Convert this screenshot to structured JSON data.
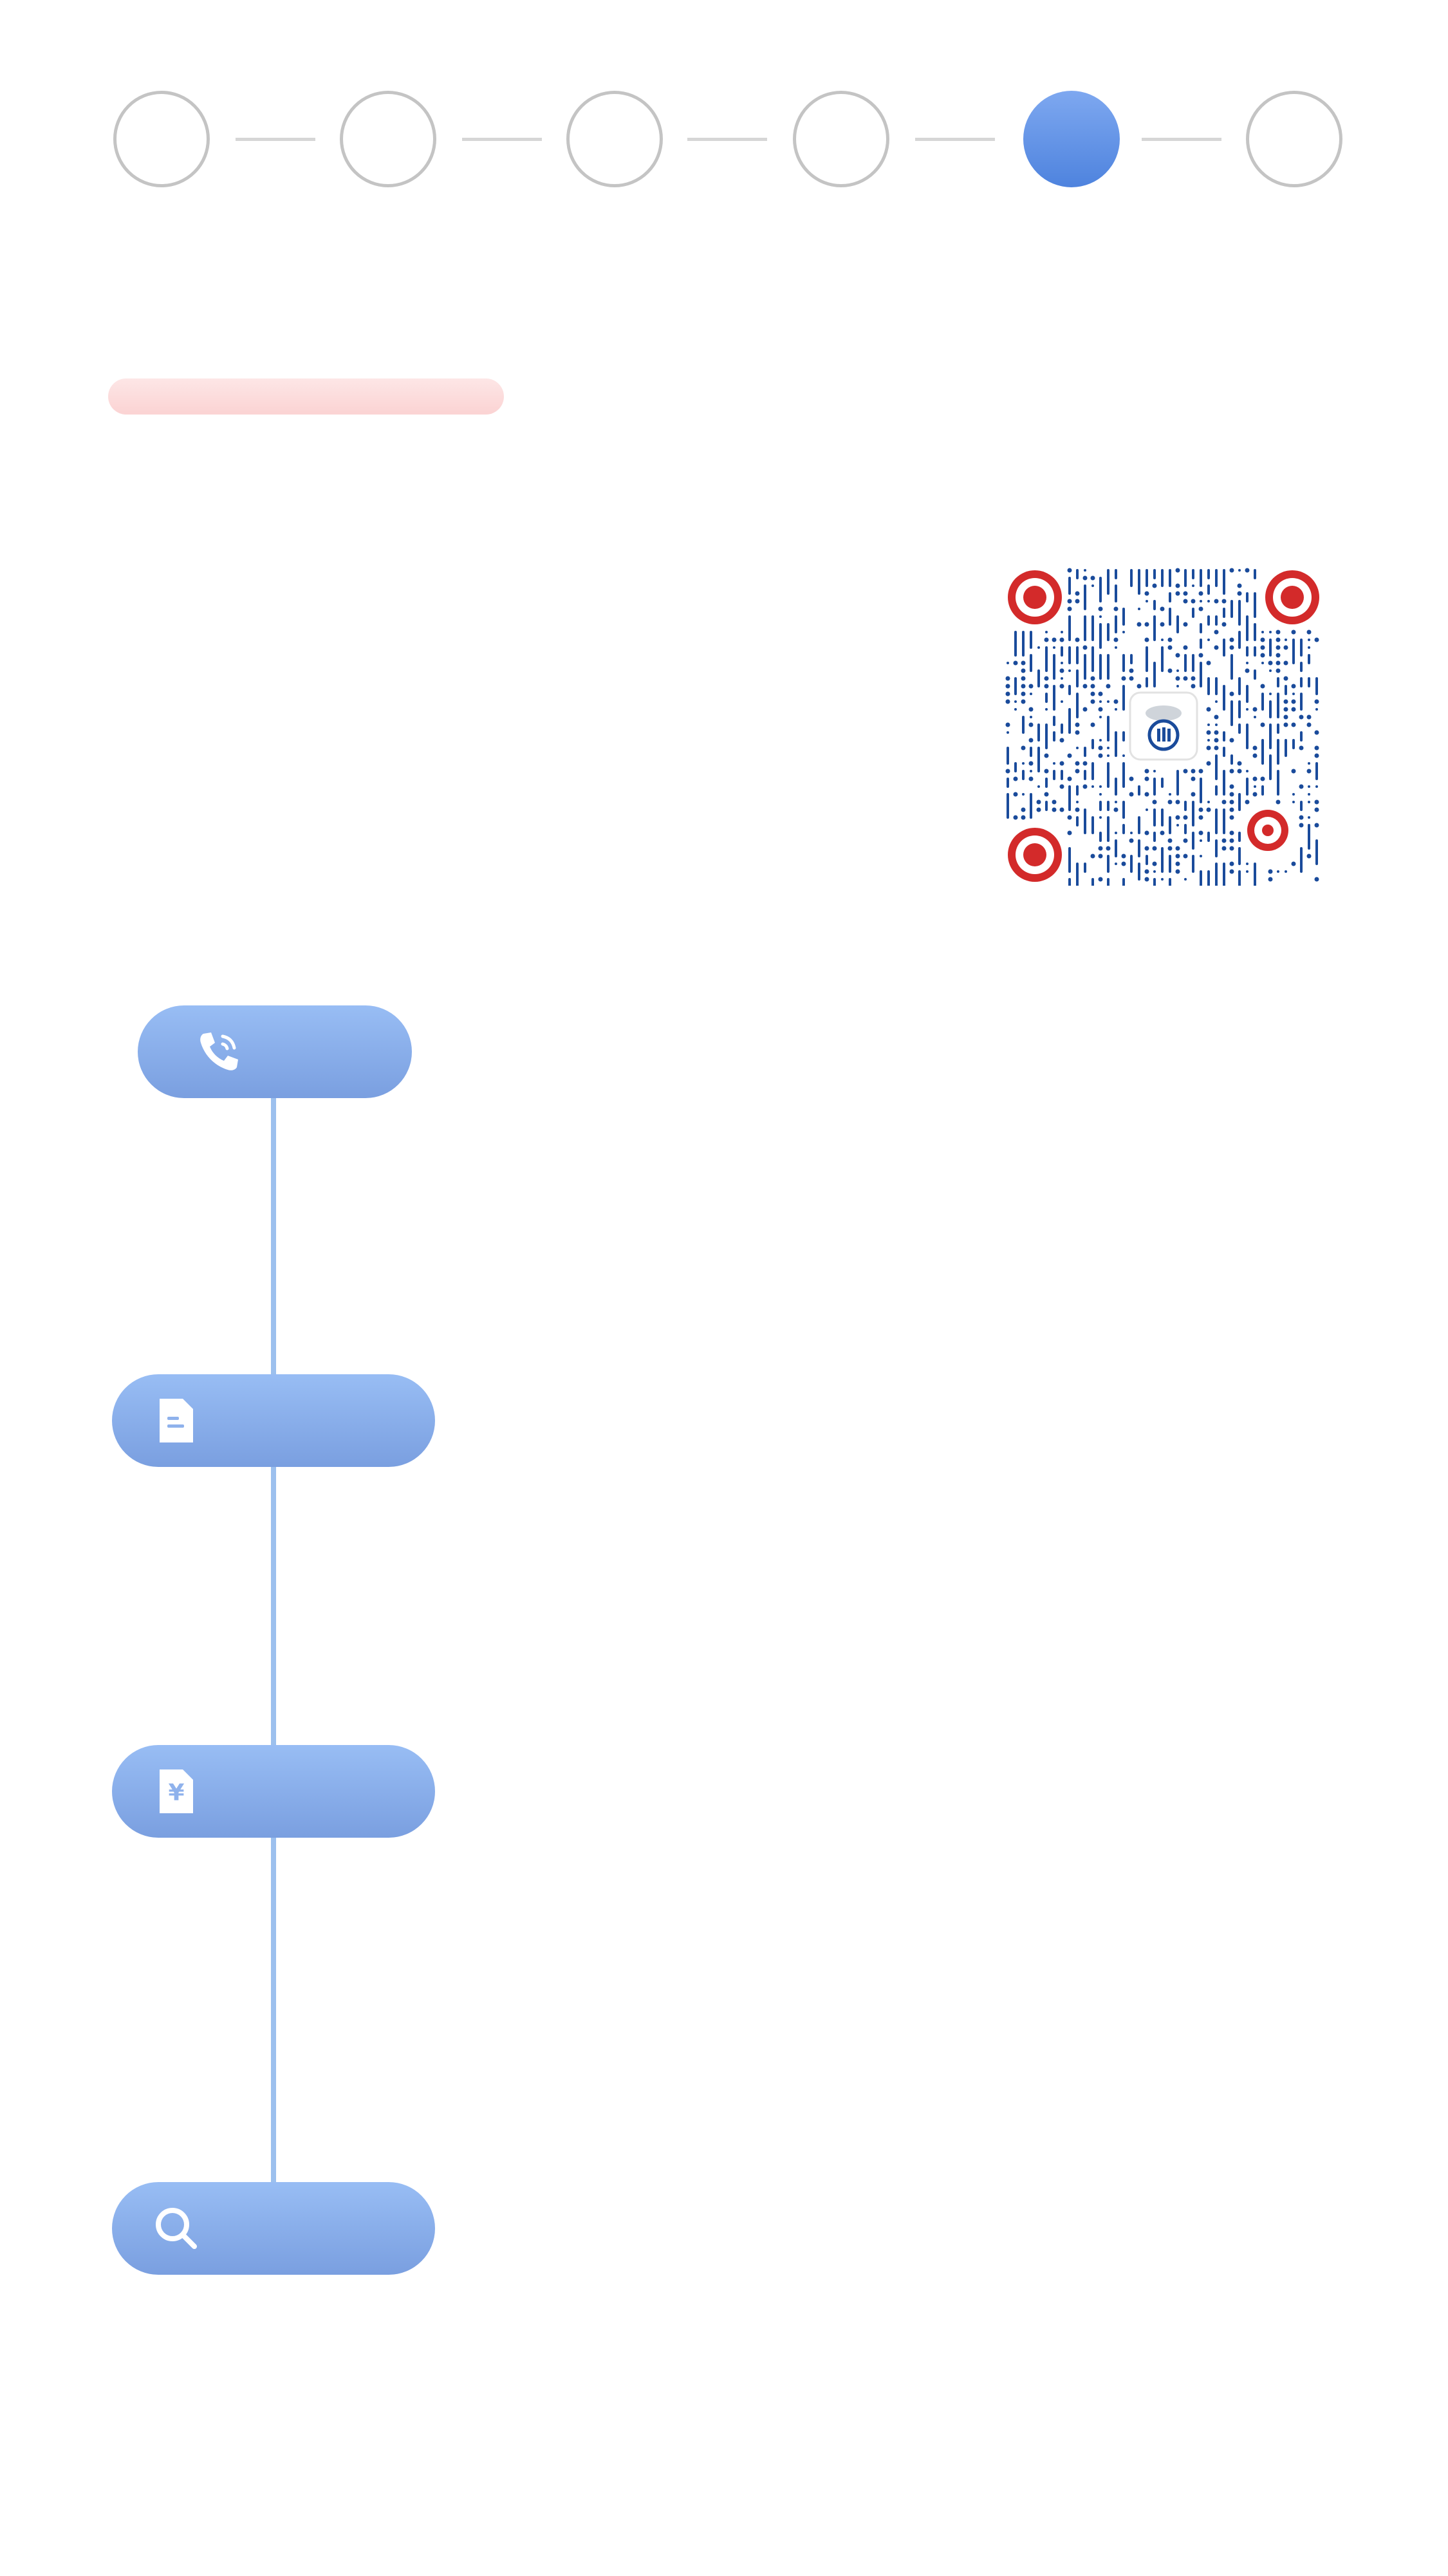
{
  "stepper": {
    "active_index": 4,
    "steps": [
      {
        "state": "inactive"
      },
      {
        "state": "inactive"
      },
      {
        "state": "inactive"
      },
      {
        "state": "inactive"
      },
      {
        "state": "active"
      },
      {
        "state": "inactive"
      }
    ]
  },
  "qr": {
    "finder_color": "#d32a2a",
    "module_color": "#1a4b9b",
    "center_icon": "logo-icon"
  },
  "timeline": {
    "items": [
      {
        "icon": "phone-icon",
        "label": ""
      },
      {
        "icon": "document-icon",
        "label": ""
      },
      {
        "icon": "yuan-document-icon",
        "label": ""
      },
      {
        "icon": "search-icon",
        "label": ""
      }
    ]
  },
  "colors": {
    "accent": "#4e83de",
    "pill_blue": "#8fb2ec",
    "timeline_line": "#9cc0ee",
    "pink_pill": "#fbd6d6",
    "inactive_step": "#c4c4c4"
  },
  "icon_glyphs": {
    "yuan": "¥"
  }
}
